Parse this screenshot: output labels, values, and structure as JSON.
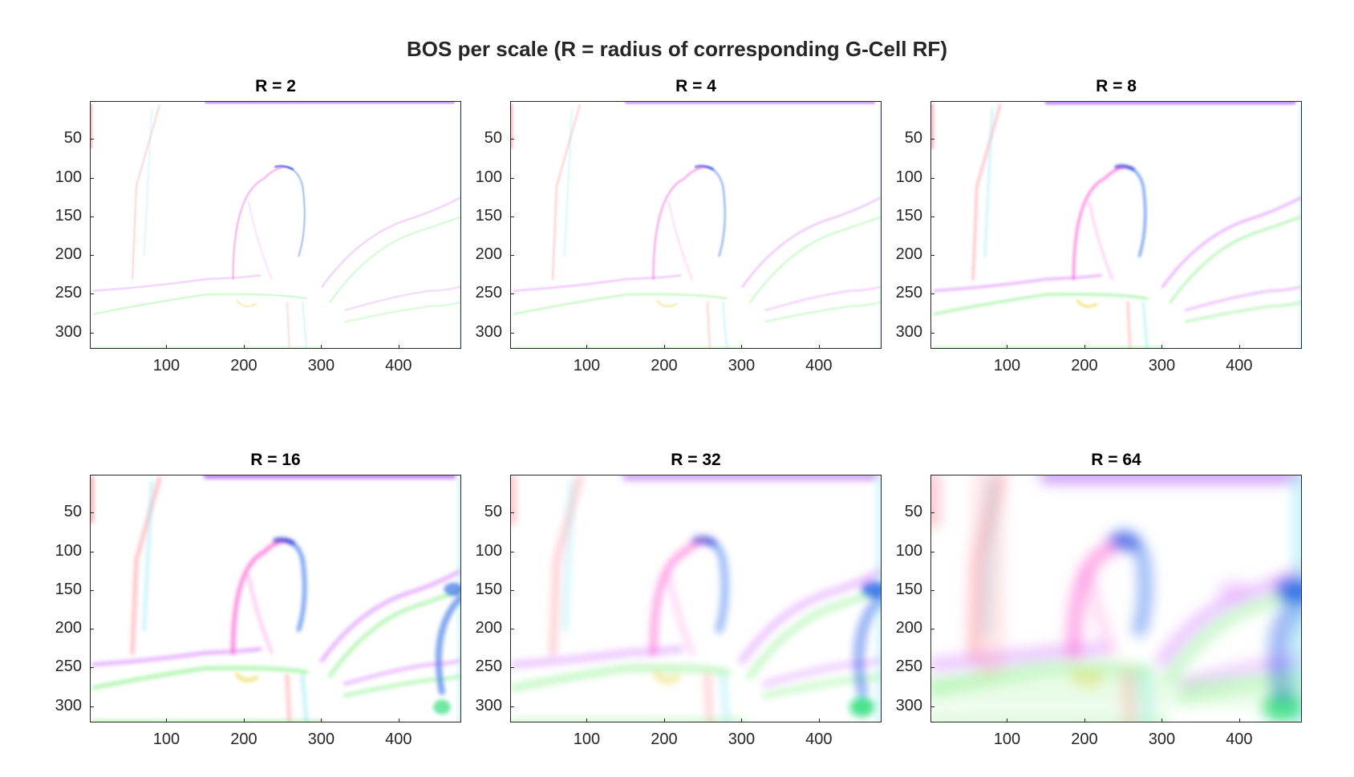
{
  "figure_title": "BOS per scale (R = radius of corresponding G-Cell RF)",
  "chart_data": [
    {
      "type": "heatmap",
      "title": "R = 2",
      "scale_radius": 2,
      "xlim": [
        1,
        481
      ],
      "ylim": [
        1,
        321
      ],
      "y_direction": "reversed",
      "xticks": [
        100,
        200,
        300,
        400
      ],
      "yticks": [
        50,
        100,
        150,
        200,
        250,
        300
      ],
      "xtick_labels": [
        "100",
        "200",
        "300",
        "400"
      ],
      "ytick_labels": [
        "50",
        "100",
        "150",
        "200",
        "250",
        "300"
      ]
    },
    {
      "type": "heatmap",
      "title": "R = 4",
      "scale_radius": 4,
      "xlim": [
        1,
        481
      ],
      "ylim": [
        1,
        321
      ],
      "y_direction": "reversed",
      "xticks": [
        100,
        200,
        300,
        400
      ],
      "yticks": [
        50,
        100,
        150,
        200,
        250,
        300
      ],
      "xtick_labels": [
        "100",
        "200",
        "300",
        "400"
      ],
      "ytick_labels": [
        "50",
        "100",
        "150",
        "200",
        "250",
        "300"
      ]
    },
    {
      "type": "heatmap",
      "title": "R = 8",
      "scale_radius": 8,
      "xlim": [
        1,
        481
      ],
      "ylim": [
        1,
        321
      ],
      "y_direction": "reversed",
      "xticks": [
        100,
        200,
        300,
        400
      ],
      "yticks": [
        50,
        100,
        150,
        200,
        250,
        300
      ],
      "xtick_labels": [
        "100",
        "200",
        "300",
        "400"
      ],
      "ytick_labels": [
        "50",
        "100",
        "150",
        "200",
        "250",
        "300"
      ]
    },
    {
      "type": "heatmap",
      "title": "R = 16",
      "scale_radius": 16,
      "xlim": [
        1,
        481
      ],
      "ylim": [
        1,
        321
      ],
      "y_direction": "reversed",
      "xticks": [
        100,
        200,
        300,
        400
      ],
      "yticks": [
        50,
        100,
        150,
        200,
        250,
        300
      ],
      "xtick_labels": [
        "100",
        "200",
        "300",
        "400"
      ],
      "ytick_labels": [
        "50",
        "100",
        "150",
        "200",
        "250",
        "300"
      ]
    },
    {
      "type": "heatmap",
      "title": "R = 32",
      "scale_radius": 32,
      "xlim": [
        1,
        481
      ],
      "ylim": [
        1,
        321
      ],
      "y_direction": "reversed",
      "xticks": [
        100,
        200,
        300,
        400
      ],
      "yticks": [
        50,
        100,
        150,
        200,
        250,
        300
      ],
      "xtick_labels": [
        "100",
        "200",
        "300",
        "400"
      ],
      "ytick_labels": [
        "50",
        "100",
        "150",
        "200",
        "250",
        "300"
      ]
    },
    {
      "type": "heatmap",
      "title": "R = 64",
      "scale_radius": 64,
      "xlim": [
        1,
        481
      ],
      "ylim": [
        1,
        321
      ],
      "y_direction": "reversed",
      "xticks": [
        100,
        200,
        300,
        400
      ],
      "yticks": [
        50,
        100,
        150,
        200,
        250,
        300
      ],
      "xtick_labels": [
        "100",
        "200",
        "300",
        "400"
      ],
      "ytick_labels": [
        "50",
        "100",
        "150",
        "200",
        "250",
        "300"
      ]
    }
  ],
  "colors": {
    "left_edge": "#ff8a95",
    "right_edge": "#7fe6f0",
    "top_edge": "#9b3cf2",
    "bottom_edge": "#7ff07a",
    "bird_left": "#ff5ad0",
    "bird_right": "#3f7cf0",
    "bird_top": "#2f3fd8",
    "branch_upper": "#d98cff",
    "branch_lower": "#8af08a",
    "right_blob": "#1a5ae8",
    "corner_blob": "#11d96a",
    "yellow_spot": "#e8d84a",
    "axes": "#262626"
  }
}
